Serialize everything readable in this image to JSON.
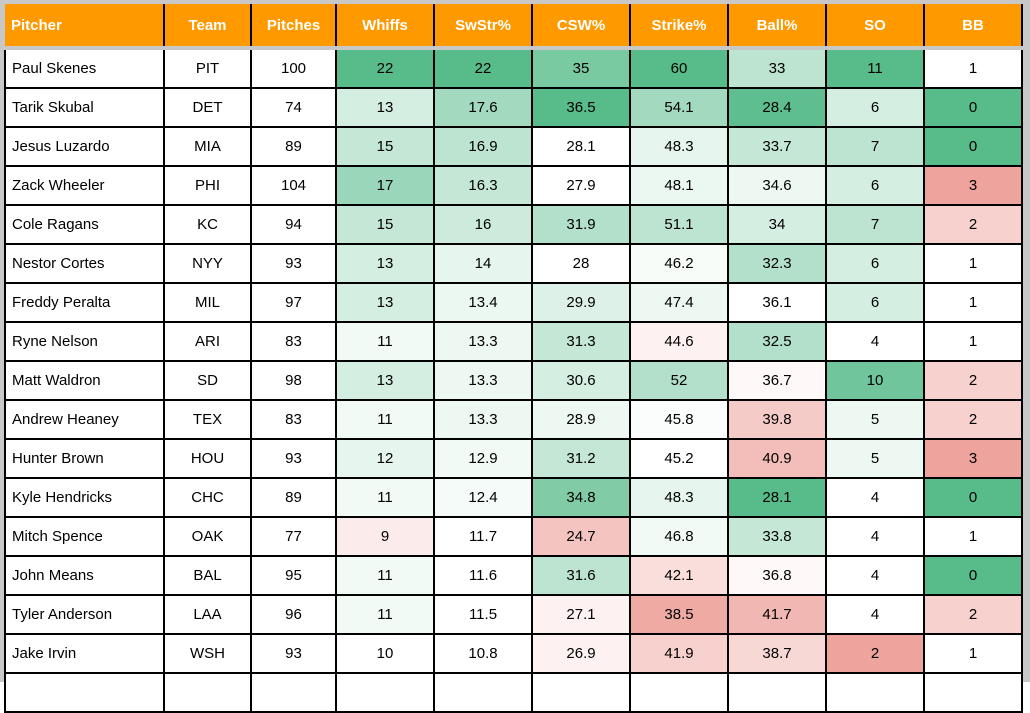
{
  "colors": {
    "header_bg": "#ff9900",
    "high": "#57bb8a",
    "low": "#e67c73"
  },
  "columns": [
    "Pitcher",
    "Team",
    "Pitches",
    "Whiffs",
    "SwStr%",
    "CSW%",
    "Strike%",
    "Ball%",
    "SO",
    "BB"
  ],
  "rows": [
    {
      "pitcher": "Paul Skenes",
      "team": "PIT",
      "pitches": "100",
      "stats": [
        "22",
        "22",
        "35",
        "60",
        "33",
        "11",
        "1"
      ],
      "heat": [
        1,
        1,
        0.8,
        1,
        0.4,
        1,
        0
      ]
    },
    {
      "pitcher": "Tarik Skubal",
      "team": "DET",
      "pitches": "74",
      "stats": [
        "13",
        "17.6",
        "36.5",
        "54.1",
        "28.4",
        "6",
        "0"
      ],
      "heat": [
        0.25,
        0.55,
        1,
        0.55,
        0.95,
        0.25,
        1
      ]
    },
    {
      "pitcher": "Jesus Luzardo",
      "team": "MIA",
      "pitches": "89",
      "stats": [
        "15",
        "16.9",
        "28.1",
        "48.3",
        "33.7",
        "7",
        "0"
      ],
      "heat": [
        0.35,
        0.4,
        0,
        0.15,
        0.35,
        0.4,
        1
      ]
    },
    {
      "pitcher": "Zack Wheeler",
      "team": "PHI",
      "pitches": "104",
      "stats": [
        "17",
        "16.3",
        "27.9",
        "48.1",
        "34.6",
        "6",
        "3"
      ],
      "heat": [
        0.6,
        0.35,
        0,
        0.12,
        0.1,
        0.25,
        -0.7
      ]
    },
    {
      "pitcher": "Cole Ragans",
      "team": "KC",
      "pitches": "94",
      "stats": [
        "15",
        "16",
        "31.9",
        "51.1",
        "34",
        "7",
        "2"
      ],
      "heat": [
        0.35,
        0.3,
        0.45,
        0.4,
        0.25,
        0.4,
        -0.35
      ]
    },
    {
      "pitcher": "Nestor Cortes",
      "team": "NYY",
      "pitches": "93",
      "stats": [
        "13",
        "14",
        "28",
        "46.2",
        "32.3",
        "6",
        "1"
      ],
      "heat": [
        0.25,
        0.15,
        0,
        0.05,
        0.45,
        0.25,
        0
      ]
    },
    {
      "pitcher": "Freddy Peralta",
      "team": "MIL",
      "pitches": "97",
      "stats": [
        "13",
        "13.4",
        "29.9",
        "47.4",
        "36.1",
        "6",
        "1"
      ],
      "heat": [
        0.25,
        0.12,
        0.2,
        0.1,
        0,
        0.25,
        0
      ]
    },
    {
      "pitcher": "Ryne Nelson",
      "team": "ARI",
      "pitches": "83",
      "stats": [
        "11",
        "13.3",
        "31.3",
        "44.6",
        "32.5",
        "4",
        "1"
      ],
      "heat": [
        0.08,
        0.1,
        0.35,
        -0.1,
        0.45,
        0,
        0
      ]
    },
    {
      "pitcher": "Matt Waldron",
      "team": "SD",
      "pitches": "98",
      "stats": [
        "13",
        "13.3",
        "30.6",
        "52",
        "36.7",
        "10",
        "2"
      ],
      "heat": [
        0.25,
        0.1,
        0.25,
        0.45,
        -0.05,
        0.85,
        -0.35
      ]
    },
    {
      "pitcher": "Andrew Heaney",
      "team": "TEX",
      "pitches": "83",
      "stats": [
        "11",
        "13.3",
        "28.9",
        "45.8",
        "39.8",
        "5",
        "2"
      ],
      "heat": [
        0.08,
        0.1,
        0.1,
        0.03,
        -0.4,
        0.1,
        -0.35
      ]
    },
    {
      "pitcher": "Hunter Brown",
      "team": "HOU",
      "pitches": "93",
      "stats": [
        "12",
        "12.9",
        "31.2",
        "45.2",
        "40.9",
        "5",
        "3"
      ],
      "heat": [
        0.15,
        0.08,
        0.35,
        0,
        -0.5,
        0.1,
        -0.7
      ]
    },
    {
      "pitcher": "Kyle Hendricks",
      "team": "CHC",
      "pitches": "89",
      "stats": [
        "11",
        "12.4",
        "34.8",
        "48.3",
        "28.1",
        "4",
        "0"
      ],
      "heat": [
        0.08,
        0.06,
        0.75,
        0.15,
        1,
        0,
        1
      ]
    },
    {
      "pitcher": "Mitch Spence",
      "team": "OAK",
      "pitches": "77",
      "stats": [
        "9",
        "11.7",
        "24.7",
        "46.8",
        "33.8",
        "4",
        "1"
      ],
      "heat": [
        -0.15,
        0,
        -0.45,
        0.08,
        0.35,
        0,
        0
      ]
    },
    {
      "pitcher": "John Means",
      "team": "BAL",
      "pitches": "95",
      "stats": [
        "11",
        "11.6",
        "31.6",
        "42.1",
        "36.8",
        "4",
        "0"
      ],
      "heat": [
        0.08,
        0,
        0.4,
        -0.25,
        -0.05,
        0,
        1
      ]
    },
    {
      "pitcher": "Tyler Anderson",
      "team": "LAA",
      "pitches": "96",
      "stats": [
        "11",
        "11.5",
        "27.1",
        "38.5",
        "41.7",
        "4",
        "2"
      ],
      "heat": [
        0.08,
        0,
        -0.1,
        -0.65,
        -0.55,
        0,
        -0.35
      ]
    },
    {
      "pitcher": "Jake Irvin",
      "team": "WSH",
      "pitches": "93",
      "stats": [
        "10",
        "10.8",
        "26.9",
        "41.9",
        "38.7",
        "2",
        "1"
      ],
      "heat": [
        0,
        0,
        -0.1,
        -0.35,
        -0.3,
        -0.7,
        0
      ]
    }
  ]
}
